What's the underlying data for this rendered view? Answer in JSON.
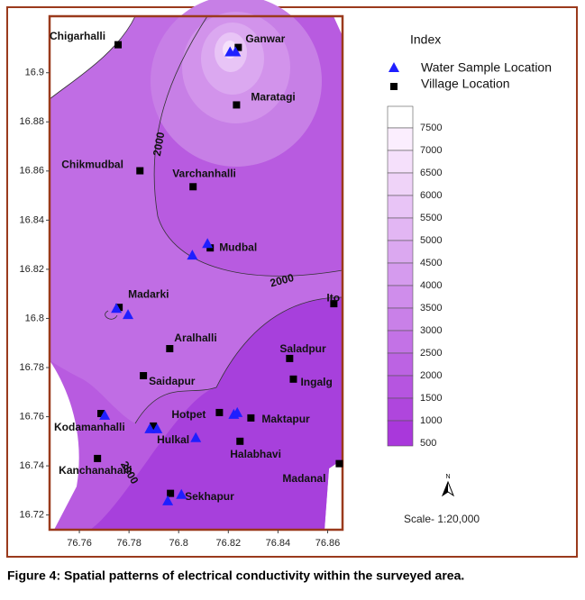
{
  "map": {
    "xlim": [
      76.748,
      76.866
    ],
    "ylim": [
      16.714,
      16.923
    ],
    "xticks": [
      76.76,
      76.78,
      76.8,
      76.82,
      76.84,
      76.86
    ],
    "yticks": [
      16.72,
      16.74,
      16.76,
      16.78,
      16.8,
      16.82,
      16.84,
      16.86,
      16.88,
      16.9
    ],
    "contour_labels": [
      2000,
      2000,
      2000
    ],
    "villages": [
      {
        "name": "Chigarhalli",
        "lon": 76.7756,
        "lat": 16.9114
      },
      {
        "name": "Ganwar",
        "lon": 76.824,
        "lat": 16.9103
      },
      {
        "name": "Maratagi",
        "lon": 76.8233,
        "lat": 16.8869
      },
      {
        "name": "Chikmudbal",
        "lon": 76.7844,
        "lat": 16.8601
      },
      {
        "name": "Varchanhalli",
        "lon": 76.8058,
        "lat": 16.8536
      },
      {
        "name": "Mudbal",
        "lon": 76.8127,
        "lat": 16.8287
      },
      {
        "name": "Madarki",
        "lon": 76.776,
        "lat": 16.8045
      },
      {
        "name": "Ito",
        "lon": 76.8625,
        "lat": 16.806
      },
      {
        "name": "Aralhalli",
        "lon": 76.7964,
        "lat": 16.7877
      },
      {
        "name": "Saladpur",
        "lon": 76.8447,
        "lat": 16.7837
      },
      {
        "name": "Saidapur",
        "lon": 76.7858,
        "lat": 16.7767
      },
      {
        "name": "Ingalg",
        "lon": 76.8462,
        "lat": 16.7753
      },
      {
        "name": "Hotpet",
        "lon": 76.8164,
        "lat": 16.7617
      },
      {
        "name": "Maktapur",
        "lon": 76.8291,
        "lat": 16.7595
      },
      {
        "name": "Kodamanhalli",
        "lon": 76.7687,
        "lat": 16.7613
      },
      {
        "name": "Hulkal",
        "lon": 76.7898,
        "lat": 16.7562
      },
      {
        "name": "Halabhavi",
        "lon": 76.8247,
        "lat": 16.75
      },
      {
        "name": "Kanchanahalli",
        "lon": 76.7673,
        "lat": 16.743
      },
      {
        "name": "Madanal",
        "lon": 76.8647,
        "lat": 16.7409
      },
      {
        "name": "Sekhapur",
        "lon": 76.7967,
        "lat": 16.7288
      }
    ],
    "water_samples": [
      {
        "lon": 76.8207,
        "lat": 16.9085
      },
      {
        "lon": 76.8229,
        "lat": 16.9085
      },
      {
        "lon": 76.8116,
        "lat": 16.8305
      },
      {
        "lon": 76.8055,
        "lat": 16.8258
      },
      {
        "lon": 76.7749,
        "lat": 16.8041
      },
      {
        "lon": 76.7796,
        "lat": 16.8016
      },
      {
        "lon": 76.7702,
        "lat": 16.7606
      },
      {
        "lon": 76.7884,
        "lat": 16.7551
      },
      {
        "lon": 76.7913,
        "lat": 16.7551
      },
      {
        "lon": 76.8222,
        "lat": 16.761
      },
      {
        "lon": 76.8236,
        "lat": 16.7617
      },
      {
        "lon": 76.8069,
        "lat": 16.7515
      },
      {
        "lon": 76.8011,
        "lat": 16.7284
      },
      {
        "lon": 76.7956,
        "lat": 16.7258
      }
    ]
  },
  "legend": {
    "title": "Index",
    "water_label": "Water Sample Location",
    "village_label": "Village Location",
    "water_color": "#1f1fff",
    "village_color": "#000000"
  },
  "scale_bar": {
    "labels": [
      7500,
      7000,
      6500,
      6000,
      5500,
      5000,
      4500,
      4000,
      3500,
      3000,
      2500,
      2000,
      1500,
      1000,
      500
    ],
    "colors": [
      "#ffffff",
      "#fbeefe",
      "#f5e0fb",
      "#efd3f8",
      "#e8c4f6",
      "#e2b6f3",
      "#dba8f0",
      "#d59bee",
      "#cf8deb",
      "#c980e8",
      "#c372e6",
      "#bc63e3",
      "#b655e0",
      "#af46dd",
      "#a938db"
    ]
  },
  "north": "N",
  "scale_text": "Scale- 1:20,000",
  "caption": "Figure 4: Spatial patterns of electrical conductivity within the surveyed area."
}
